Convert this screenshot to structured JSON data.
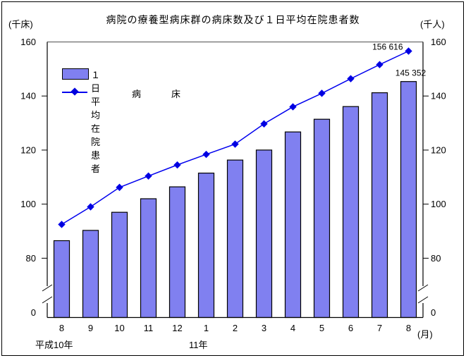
{
  "title": "病院の療養型病床群の病床数及び１日平均在院患者数",
  "axis_units": {
    "left": "(千床)",
    "right": "(千人)",
    "x": "(月)"
  },
  "era_labels": {
    "start": "平成10年",
    "mid": "11年"
  },
  "legend": {
    "bar_label": "１日平均在院患者",
    "line_label": "病　　　床"
  },
  "colors": {
    "background": "#ffffff",
    "bar_fill": "#8080f0",
    "bar_stroke": "#000000",
    "line": "#0000ee",
    "marker": "#0000dd",
    "axis": "#000000",
    "frame_top": "#808080",
    "text": "#000000"
  },
  "chart_data": {
    "type": "bar+line combo",
    "title": "病院の療養型病床群の病床数及び１日平均在院患者数",
    "categories": [
      "8",
      "9",
      "10",
      "11",
      "12",
      "1",
      "2",
      "3",
      "4",
      "5",
      "6",
      "7",
      "8"
    ],
    "category_unit": "月",
    "era_labels": [
      "平成10年",
      "11年"
    ],
    "series": [
      {
        "name": "１日平均在院患者",
        "type": "bar",
        "axis": "right (千人)",
        "values": [
          86.5,
          90.3,
          97.0,
          102.0,
          106.4,
          111.5,
          116.3,
          120.0,
          126.7,
          131.4,
          136.1,
          141.2,
          145.352
        ]
      },
      {
        "name": "病床",
        "type": "line",
        "axis": "left (千床)",
        "values": [
          92.5,
          99.0,
          106.2,
          110.4,
          114.5,
          118.4,
          122.2,
          129.7,
          136.0,
          141.0,
          146.4,
          151.6,
          156.616
        ]
      }
    ],
    "y_ticks": [
      160,
      140,
      120,
      100,
      80
    ],
    "y_zero_label": "0",
    "ylim": [
      80,
      160
    ],
    "axis_break": true,
    "grid": false,
    "legend_position": "top-left inside plot",
    "annotations": [
      {
        "text": "156 616",
        "series": "病床",
        "point_index": 12
      },
      {
        "text": "145 352",
        "series": "１日平均在院患者",
        "point_index": 12
      }
    ]
  }
}
